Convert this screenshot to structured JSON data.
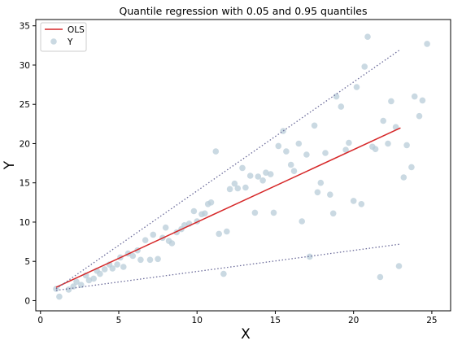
{
  "chart_data": {
    "type": "scatter",
    "title": "Quantile regression with 0.05 and 0.95 quantiles",
    "xlabel": "X",
    "ylabel": "Y",
    "xlim": [
      -0.3,
      26.2
    ],
    "ylim": [
      -1.3,
      35.8
    ],
    "xticks": [
      "0",
      "5",
      "10",
      "15",
      "20",
      "25"
    ],
    "yticks": [
      "0",
      "5",
      "10",
      "15",
      "20",
      "25",
      "30",
      "35"
    ],
    "grid": false,
    "legend_position": "top-left",
    "legend": [
      "OLS",
      "Y"
    ],
    "colors": {
      "ols": "#d62728",
      "quantile": "#6b6b9a",
      "scatter": "#b8ccd8"
    },
    "series": [
      {
        "name": "OLS",
        "type": "line",
        "x": [
          1,
          23
        ],
        "y": [
          1.7,
          22
        ]
      },
      {
        "type": "line",
        "style": "dotted",
        "x": [
          1,
          23
        ],
        "y": [
          1.5,
          32
        ]
      },
      {
        "type": "line",
        "style": "dotted",
        "x": [
          1,
          23
        ],
        "y": [
          1.3,
          7.2
        ]
      },
      {
        "name": "Y",
        "type": "scatter",
        "points": [
          [
            1.0,
            1.5
          ],
          [
            1.2,
            0.5
          ],
          [
            1.8,
            1.4
          ],
          [
            2.1,
            1.8
          ],
          [
            2.3,
            2.4
          ],
          [
            2.6,
            2.0
          ],
          [
            2.9,
            3.2
          ],
          [
            3.1,
            2.6
          ],
          [
            3.4,
            2.8
          ],
          [
            3.6,
            3.8
          ],
          [
            3.8,
            3.4
          ],
          [
            4.1,
            4.0
          ],
          [
            4.4,
            4.6
          ],
          [
            4.6,
            4.1
          ],
          [
            4.9,
            4.6
          ],
          [
            5.1,
            5.5
          ],
          [
            5.3,
            4.3
          ],
          [
            5.6,
            6.0
          ],
          [
            5.9,
            5.7
          ],
          [
            6.2,
            6.4
          ],
          [
            6.4,
            5.2
          ],
          [
            6.7,
            7.7
          ],
          [
            7.0,
            5.2
          ],
          [
            7.2,
            8.4
          ],
          [
            7.5,
            5.3
          ],
          [
            7.8,
            8.0
          ],
          [
            8.0,
            9.3
          ],
          [
            8.2,
            7.6
          ],
          [
            8.4,
            7.3
          ],
          [
            8.7,
            8.7
          ],
          [
            9.0,
            9.1
          ],
          [
            9.2,
            9.6
          ],
          [
            9.5,
            9.8
          ],
          [
            9.8,
            11.4
          ],
          [
            10.0,
            10.1
          ],
          [
            10.3,
            11.0
          ],
          [
            10.5,
            11.1
          ],
          [
            10.7,
            12.3
          ],
          [
            10.9,
            12.5
          ],
          [
            11.2,
            19.0
          ],
          [
            11.4,
            8.5
          ],
          [
            11.7,
            3.4
          ],
          [
            11.9,
            8.8
          ],
          [
            12.1,
            14.2
          ],
          [
            12.4,
            14.9
          ],
          [
            12.6,
            14.3
          ],
          [
            12.9,
            16.9
          ],
          [
            13.1,
            14.4
          ],
          [
            13.4,
            15.9
          ],
          [
            13.7,
            11.2
          ],
          [
            13.9,
            15.8
          ],
          [
            14.2,
            15.3
          ],
          [
            14.4,
            16.3
          ],
          [
            14.7,
            16.1
          ],
          [
            14.9,
            11.2
          ],
          [
            15.2,
            19.7
          ],
          [
            15.5,
            21.6
          ],
          [
            15.7,
            19.0
          ],
          [
            16.0,
            17.3
          ],
          [
            16.2,
            16.5
          ],
          [
            16.5,
            20.0
          ],
          [
            16.7,
            10.1
          ],
          [
            17.0,
            18.6
          ],
          [
            17.2,
            5.6
          ],
          [
            17.5,
            22.3
          ],
          [
            17.7,
            13.8
          ],
          [
            17.9,
            15.0
          ],
          [
            18.2,
            18.8
          ],
          [
            18.5,
            13.5
          ],
          [
            18.7,
            11.1
          ],
          [
            18.9,
            26.0
          ],
          [
            19.2,
            24.7
          ],
          [
            19.5,
            19.2
          ],
          [
            19.7,
            20.1
          ],
          [
            20.0,
            12.7
          ],
          [
            20.2,
            27.2
          ],
          [
            20.5,
            12.3
          ],
          [
            20.7,
            29.8
          ],
          [
            20.9,
            33.6
          ],
          [
            21.2,
            19.6
          ],
          [
            21.4,
            19.3
          ],
          [
            21.7,
            3.0
          ],
          [
            21.9,
            22.9
          ],
          [
            22.2,
            20.0
          ],
          [
            22.4,
            25.4
          ],
          [
            22.7,
            22.1
          ],
          [
            22.9,
            4.4
          ],
          [
            23.2,
            15.7
          ],
          [
            23.4,
            19.8
          ],
          [
            23.7,
            17.0
          ],
          [
            23.9,
            26.0
          ],
          [
            24.2,
            23.5
          ],
          [
            24.4,
            25.5
          ],
          [
            24.7,
            32.7
          ]
        ]
      }
    ]
  }
}
